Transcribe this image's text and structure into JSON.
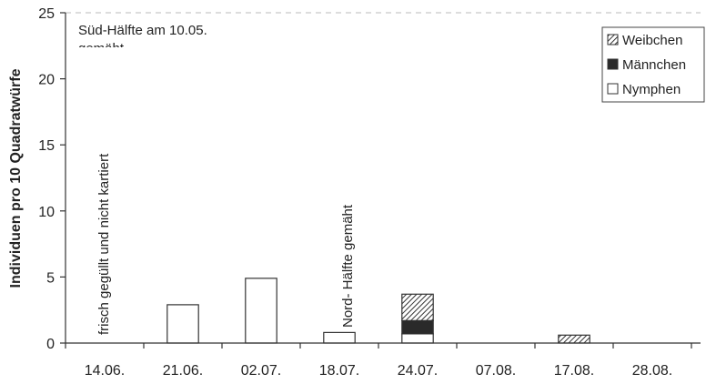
{
  "chart_data": {
    "type": "bar",
    "stacked": true,
    "categories": [
      "14.06.",
      "21.06.",
      "02.07.",
      "18.07.",
      "24.07.",
      "07.08.",
      "17.08.",
      "28.08."
    ],
    "series": [
      {
        "name": "Nymphen",
        "values": [
          0,
          2.9,
          4.9,
          0.8,
          0.7,
          0,
          0,
          0
        ],
        "fill": "#ffffff"
      },
      {
        "name": "Männchen",
        "values": [
          0,
          0,
          0,
          0,
          1.0,
          0,
          0,
          0
        ],
        "fill": "#2a2a2a"
      },
      {
        "name": "Weibchen",
        "values": [
          0,
          0,
          0,
          0,
          2.0,
          0,
          0.6,
          0
        ],
        "fill": "hatch"
      }
    ],
    "ylabel": "Individuen pro 10 Quadratwürfe",
    "xlabel": "",
    "ylim": [
      0,
      25
    ],
    "yticks": [
      0,
      5,
      10,
      15,
      20,
      25
    ],
    "legend_position": "top-right",
    "annotations": {
      "top_left_line1": "Süd-Hälfte am 10.05.",
      "top_left_line2": "gemäht",
      "note_1406": "frisch gegüllt und nicht kartiert",
      "note_1807": "Nord- Hälfte gemäht"
    }
  }
}
